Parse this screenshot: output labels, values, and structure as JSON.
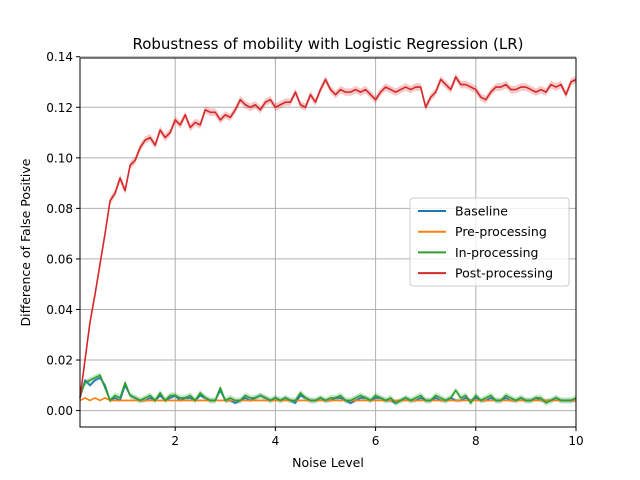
{
  "chart_data": {
    "type": "line",
    "title": "Robustness of mobility with Logistic Regression (LR)",
    "xlabel": "Noise Level",
    "ylabel": "Difference of False Positive",
    "xlim": [
      0.1,
      10
    ],
    "ylim": [
      -0.0065,
      0.1395
    ],
    "xticks": [
      2,
      4,
      6,
      8,
      10
    ],
    "yticks": [
      0.0,
      0.02,
      0.04,
      0.06,
      0.08,
      0.1,
      0.12,
      0.14
    ],
    "ytick_labels": [
      "0.00",
      "0.02",
      "0.04",
      "0.06",
      "0.08",
      "0.10",
      "0.12",
      "0.14"
    ],
    "grid": true,
    "legend_position": "center-right",
    "x": [
      0.1,
      0.2,
      0.3,
      0.4,
      0.5,
      0.6,
      0.7,
      0.8,
      0.9,
      1.0,
      1.1,
      1.2,
      1.3,
      1.4,
      1.5,
      1.6,
      1.7,
      1.8,
      1.9,
      2.0,
      2.1,
      2.2,
      2.3,
      2.4,
      2.5,
      2.6,
      2.7,
      2.8,
      2.9,
      3.0,
      3.1,
      3.2,
      3.3,
      3.4,
      3.5,
      3.6,
      3.7,
      3.8,
      3.9,
      4.0,
      4.1,
      4.2,
      4.3,
      4.4,
      4.5,
      4.6,
      4.7,
      4.8,
      4.9,
      5.0,
      5.1,
      5.2,
      5.3,
      5.4,
      5.5,
      5.6,
      5.7,
      5.8,
      5.9,
      6.0,
      6.1,
      6.2,
      6.3,
      6.4,
      6.5,
      6.6,
      6.7,
      6.8,
      6.9,
      7.0,
      7.1,
      7.2,
      7.3,
      7.4,
      7.5,
      7.6,
      7.7,
      7.8,
      7.9,
      8.0,
      8.1,
      8.2,
      8.3,
      8.4,
      8.5,
      8.6,
      8.7,
      8.8,
      8.9,
      9.0,
      9.1,
      9.2,
      9.3,
      9.4,
      9.5,
      9.6,
      9.7,
      9.8,
      9.9,
      10.0
    ],
    "series": [
      {
        "name": "Baseline",
        "color": "#1f77b4",
        "values": [
          0.005,
          0.012,
          0.01,
          0.012,
          0.013,
          0.01,
          0.004,
          0.005,
          0.004,
          0.01,
          0.006,
          0.005,
          0.004,
          0.004,
          0.005,
          0.004,
          0.006,
          0.004,
          0.005,
          0.006,
          0.004,
          0.005,
          0.005,
          0.004,
          0.006,
          0.005,
          0.004,
          0.004,
          0.008,
          0.004,
          0.004,
          0.003,
          0.004,
          0.005,
          0.004,
          0.005,
          0.006,
          0.005,
          0.004,
          0.005,
          0.004,
          0.005,
          0.004,
          0.003,
          0.006,
          0.005,
          0.004,
          0.004,
          0.005,
          0.004,
          0.004,
          0.005,
          0.005,
          0.004,
          0.003,
          0.004,
          0.005,
          0.005,
          0.004,
          0.005,
          0.005,
          0.004,
          0.004,
          0.003,
          0.004,
          0.005,
          0.004,
          0.004,
          0.005,
          0.004,
          0.004,
          0.005,
          0.004,
          0.004,
          0.005,
          0.004,
          0.004,
          0.005,
          0.004,
          0.005,
          0.004,
          0.004,
          0.005,
          0.004,
          0.004,
          0.005,
          0.004,
          0.004,
          0.005,
          0.004,
          0.004,
          0.005,
          0.004,
          0.004,
          0.004,
          0.005,
          0.004,
          0.004,
          0.004,
          0.004
        ]
      },
      {
        "name": "Pre-processing",
        "color": "#ff7f0e",
        "values": [
          0.004,
          0.005,
          0.004,
          0.005,
          0.004,
          0.005,
          0.004,
          0.004,
          0.004,
          0.004,
          0.004,
          0.004,
          0.004,
          0.004,
          0.004,
          0.004,
          0.004,
          0.004,
          0.004,
          0.004,
          0.004,
          0.004,
          0.004,
          0.004,
          0.004,
          0.004,
          0.004,
          0.004,
          0.004,
          0.004,
          0.004,
          0.004,
          0.004,
          0.004,
          0.004,
          0.004,
          0.004,
          0.004,
          0.004,
          0.004,
          0.004,
          0.004,
          0.004,
          0.004,
          0.004,
          0.004,
          0.004,
          0.004,
          0.004,
          0.004,
          0.004,
          0.004,
          0.004,
          0.004,
          0.004,
          0.004,
          0.004,
          0.004,
          0.004,
          0.004,
          0.004,
          0.004,
          0.004,
          0.004,
          0.004,
          0.004,
          0.004,
          0.004,
          0.004,
          0.004,
          0.004,
          0.004,
          0.004,
          0.004,
          0.004,
          0.004,
          0.004,
          0.004,
          0.004,
          0.004,
          0.004,
          0.004,
          0.004,
          0.004,
          0.004,
          0.004,
          0.004,
          0.004,
          0.004,
          0.004,
          0.004,
          0.004,
          0.004,
          0.004,
          0.004,
          0.004,
          0.004,
          0.004,
          0.004,
          0.004
        ]
      },
      {
        "name": "In-processing",
        "color": "#2ca02c",
        "values": [
          0.006,
          0.011,
          0.012,
          0.013,
          0.014,
          0.009,
          0.004,
          0.006,
          0.005,
          0.011,
          0.006,
          0.005,
          0.004,
          0.005,
          0.006,
          0.004,
          0.007,
          0.004,
          0.006,
          0.006,
          0.005,
          0.005,
          0.006,
          0.004,
          0.007,
          0.005,
          0.004,
          0.004,
          0.009,
          0.004,
          0.005,
          0.004,
          0.004,
          0.006,
          0.005,
          0.005,
          0.006,
          0.005,
          0.004,
          0.005,
          0.004,
          0.005,
          0.004,
          0.004,
          0.007,
          0.005,
          0.004,
          0.004,
          0.005,
          0.004,
          0.005,
          0.005,
          0.006,
          0.004,
          0.004,
          0.005,
          0.006,
          0.005,
          0.004,
          0.006,
          0.005,
          0.004,
          0.005,
          0.003,
          0.004,
          0.005,
          0.004,
          0.005,
          0.006,
          0.004,
          0.004,
          0.006,
          0.005,
          0.004,
          0.005,
          0.008,
          0.005,
          0.006,
          0.003,
          0.006,
          0.004,
          0.005,
          0.006,
          0.004,
          0.004,
          0.006,
          0.005,
          0.004,
          0.005,
          0.004,
          0.004,
          0.005,
          0.005,
          0.003,
          0.004,
          0.005,
          0.004,
          0.004,
          0.004,
          0.005
        ]
      },
      {
        "name": "Post-processing",
        "color": "#d62728",
        "values": [
          0.005,
          0.02,
          0.035,
          0.046,
          0.058,
          0.07,
          0.083,
          0.086,
          0.092,
          0.087,
          0.097,
          0.099,
          0.104,
          0.107,
          0.108,
          0.105,
          0.111,
          0.108,
          0.11,
          0.115,
          0.113,
          0.117,
          0.112,
          0.114,
          0.113,
          0.119,
          0.118,
          0.118,
          0.115,
          0.117,
          0.116,
          0.119,
          0.123,
          0.121,
          0.12,
          0.121,
          0.119,
          0.122,
          0.123,
          0.12,
          0.121,
          0.122,
          0.122,
          0.126,
          0.121,
          0.12,
          0.125,
          0.122,
          0.127,
          0.131,
          0.127,
          0.125,
          0.127,
          0.126,
          0.126,
          0.127,
          0.126,
          0.127,
          0.125,
          0.123,
          0.126,
          0.128,
          0.127,
          0.126,
          0.127,
          0.128,
          0.127,
          0.128,
          0.128,
          0.12,
          0.124,
          0.126,
          0.131,
          0.129,
          0.127,
          0.132,
          0.129,
          0.129,
          0.128,
          0.127,
          0.124,
          0.123,
          0.126,
          0.128,
          0.128,
          0.129,
          0.127,
          0.127,
          0.128,
          0.128,
          0.127,
          0.126,
          0.127,
          0.126,
          0.129,
          0.128,
          0.129,
          0.125,
          0.13,
          0.131
        ]
      }
    ]
  }
}
